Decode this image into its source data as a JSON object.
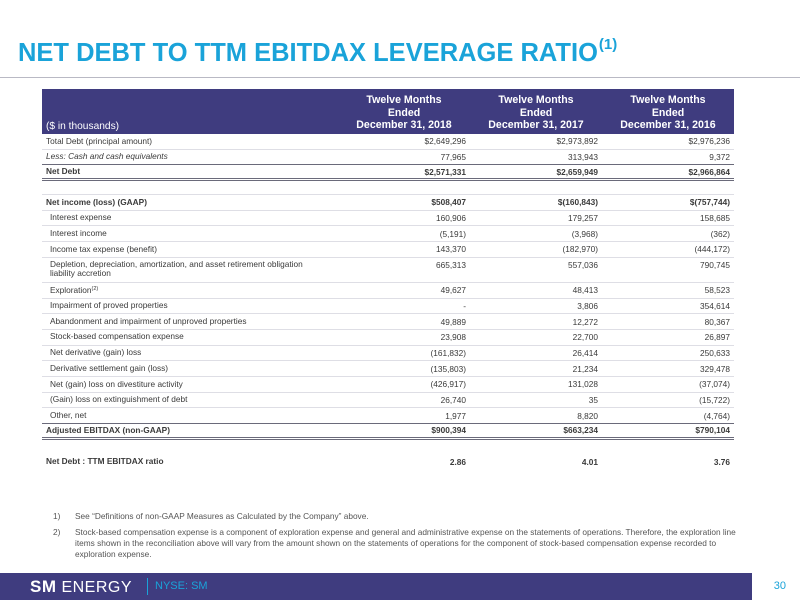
{
  "title": "NET DEBT TO TTM EBITDAX LEVERAGE RATIO",
  "title_note": "(1)",
  "table": {
    "units_label": "($ in thousands)",
    "columns": [
      {
        "l1": "Twelve Months",
        "l2": "Ended",
        "l3": "December 31, 2018"
      },
      {
        "l1": "Twelve Months",
        "l2": "Ended",
        "l3": "December 31, 2017"
      },
      {
        "l1": "Twelve Months",
        "l2": "Ended",
        "l3": "December 31, 2016"
      }
    ],
    "rows": {
      "total_debt": {
        "label": "Total Debt (principal amount)",
        "v": [
          "$2,649,296",
          "$2,973,892",
          "$2,976,236"
        ]
      },
      "less_cash": {
        "label": "Less: Cash and cash equivalents",
        "v": [
          "77,965",
          "313,943",
          "9,372"
        ]
      },
      "net_debt": {
        "label": "Net Debt",
        "v": [
          "$2,571,331",
          "$2,659,949",
          "$2,966,864"
        ]
      },
      "net_income": {
        "label": "Net income (loss) (GAAP)",
        "v": [
          "$508,407",
          "$(160,843)",
          "$(757,744)"
        ]
      },
      "interest_expense": {
        "label": "Interest expense",
        "v": [
          "160,906",
          "179,257",
          "158,685"
        ]
      },
      "interest_income": {
        "label": "Interest income",
        "v": [
          "(5,191)",
          "(3,968)",
          "(362)"
        ]
      },
      "income_tax": {
        "label": "Income tax expense (benefit)",
        "v": [
          "143,370",
          "(182,970)",
          "(444,172)"
        ]
      },
      "dda": {
        "label": "Depletion, depreciation, amortization, and asset retirement obligation liability accretion",
        "v": [
          "665,313",
          "557,036",
          "790,745"
        ]
      },
      "exploration": {
        "label": "Exploration",
        "note": "(2)",
        "v": [
          "49,627",
          "48,413",
          "58,523"
        ]
      },
      "impairment_proved": {
        "label": "Impairment of proved properties",
        "v": [
          "-",
          "3,806",
          "354,614"
        ]
      },
      "abandonment": {
        "label": "Abandonment and impairment of unproved properties",
        "v": [
          "49,889",
          "12,272",
          "80,367"
        ]
      },
      "stock_comp": {
        "label": "Stock-based compensation expense",
        "v": [
          "23,908",
          "22,700",
          "26,897"
        ]
      },
      "derivative_loss": {
        "label": "Net derivative (gain) loss",
        "v": [
          "(161,832)",
          "26,414",
          "250,633"
        ]
      },
      "derivative_settlement": {
        "label": "Derivative settlement gain (loss)",
        "v": [
          "(135,803)",
          "21,234",
          "329,478"
        ]
      },
      "divestiture": {
        "label": "Net (gain) loss on divestiture activity",
        "v": [
          "(426,917)",
          "131,028",
          "(37,074)"
        ]
      },
      "extinguishment": {
        "label": "(Gain) loss on extinguishment of debt",
        "v": [
          "26,740",
          "35",
          "(15,722)"
        ]
      },
      "other": {
        "label": "Other, net",
        "v": [
          "1,977",
          "8,820",
          "(4,764)"
        ]
      },
      "adj_ebitdax": {
        "label": "Adjusted EBITDAX (non-GAAP)",
        "v": [
          "$900,394",
          "$663,234",
          "$790,104"
        ]
      },
      "ratio": {
        "label": "Net Debt : TTM EBITDAX ratio",
        "v": [
          "2.86",
          "4.01",
          "3.76"
        ]
      }
    }
  },
  "notes": [
    {
      "num": "1)",
      "text": "See “Definitions of non-GAAP Measures as Calculated by the Company” above."
    },
    {
      "num": "2)",
      "text": "Stock-based compensation expense is a component of exploration expense and general and administrative expense on the statements of operations.  Therefore, the exploration line items shown in the reconciliation above will vary from the amount shown on the statements of operations for the component of stock-based compensation expense recorded to exploration expense."
    }
  ],
  "footer": {
    "logo_bold": "SM",
    "logo_rest": " ENERGY",
    "ticker": "NYSE: SM",
    "page": "30"
  },
  "colors": {
    "accent": "#1aa3d9",
    "header_bg": "#3f3c7f"
  }
}
